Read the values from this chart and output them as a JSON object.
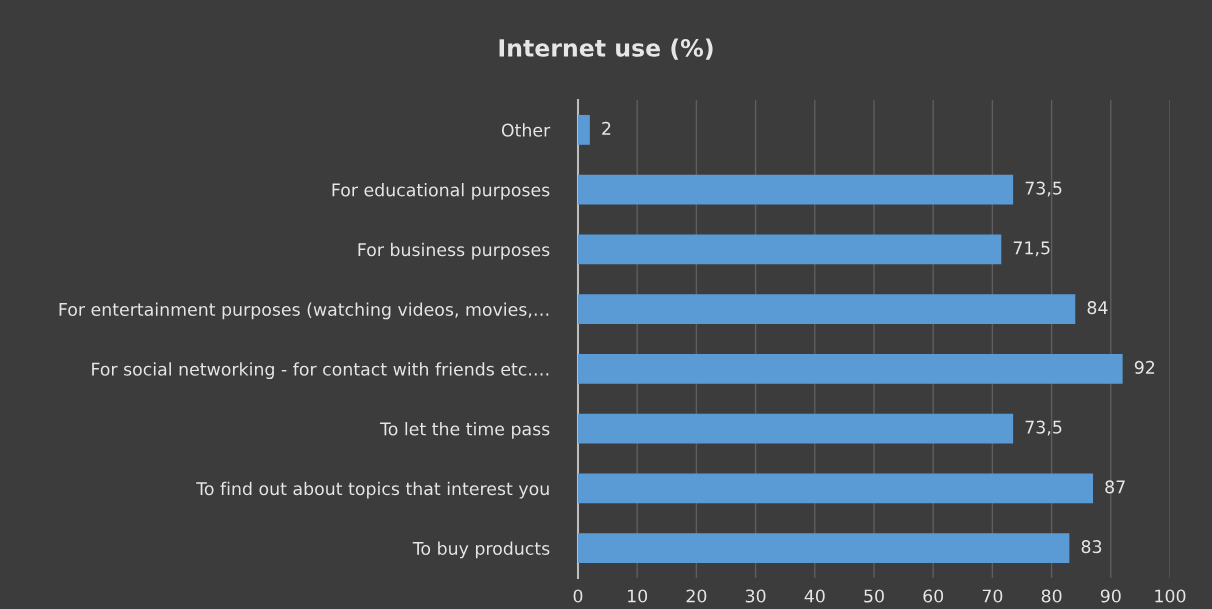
{
  "chart_data": {
    "type": "bar",
    "orientation": "horizontal",
    "title": "Internet use (%)",
    "categories": [
      "Other",
      "For educational purposes",
      "For business purposes",
      "For entertainment purposes (watching videos, movies,…",
      "For social networking - for contact with friends etc.…",
      "To let the time pass",
      "To find out about topics that interest you",
      "To buy products"
    ],
    "values": [
      2,
      73.5,
      71.5,
      84,
      92,
      73.5,
      87,
      83
    ],
    "value_labels": [
      "2",
      "73,5",
      "71,5",
      "84",
      "92",
      "73,5",
      "87",
      "83"
    ],
    "color": "#5b9bd5",
    "xlim": [
      0,
      100
    ],
    "xticks": [
      0,
      10,
      20,
      30,
      40,
      50,
      60,
      70,
      80,
      90,
      100
    ],
    "grid": "x",
    "legend": false
  }
}
